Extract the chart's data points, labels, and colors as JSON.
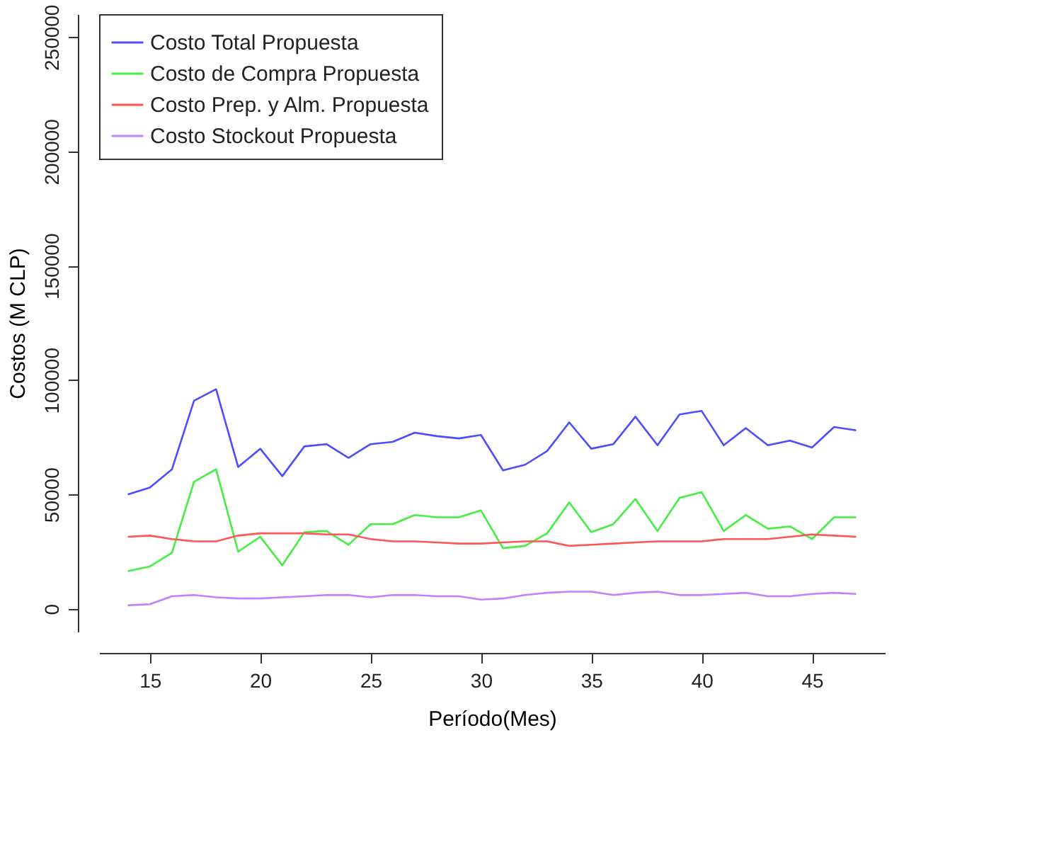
{
  "chart_data": {
    "type": "line",
    "xlabel": "Período(Mes)",
    "ylabel": "Costos (M CLP)",
    "x": [
      14,
      15,
      16,
      17,
      18,
      19,
      20,
      21,
      22,
      23,
      24,
      25,
      26,
      27,
      28,
      29,
      30,
      31,
      32,
      33,
      34,
      35,
      36,
      37,
      38,
      39,
      40,
      41,
      42,
      43,
      44,
      45,
      46,
      47
    ],
    "series": [
      {
        "name": "Costo Total Propuesta",
        "color": "#4d4dff",
        "values": [
          50000,
          53000,
          61000,
          91000,
          96000,
          62000,
          70000,
          58000,
          71000,
          72000,
          66000,
          72000,
          73000,
          77000,
          75500,
          74500,
          76000,
          60500,
          63000,
          69000,
          81500,
          70000,
          72000,
          84000,
          71500,
          85000,
          86500,
          71500,
          79000,
          71500,
          73500,
          70500,
          79500,
          78000
        ]
      },
      {
        "name": "Costo de Compra Propuesta",
        "color": "#44ee44",
        "values": [
          16500,
          18500,
          24500,
          55500,
          61000,
          25000,
          31500,
          19000,
          33500,
          34000,
          28000,
          37000,
          37000,
          41000,
          40000,
          40000,
          43000,
          26500,
          27500,
          33000,
          46500,
          33500,
          37000,
          48000,
          34000,
          48500,
          51000,
          34000,
          41000,
          35000,
          36000,
          30500,
          40000,
          40000
        ]
      },
      {
        "name": "Costo Prep. y Alm. Propuesta",
        "color": "#ff5555",
        "values": [
          31500,
          32000,
          30500,
          29500,
          29500,
          32000,
          33000,
          33000,
          33000,
          32500,
          32500,
          30500,
          29500,
          29500,
          29000,
          28500,
          28500,
          29000,
          29500,
          29500,
          27500,
          28000,
          28500,
          29000,
          29500,
          29500,
          29500,
          30500,
          30500,
          30500,
          31500,
          32500,
          32000,
          31500
        ]
      },
      {
        "name": "Costo Stockout Propuesta",
        "color": "#c080ff",
        "values": [
          1500,
          2000,
          5500,
          6000,
          5000,
          4500,
          4500,
          5000,
          5500,
          6000,
          6000,
          5000,
          6000,
          6000,
          5500,
          5500,
          4000,
          4500,
          6000,
          7000,
          7500,
          7500,
          6000,
          7000,
          7500,
          6000,
          6000,
          6500,
          7000,
          5500,
          5500,
          6500,
          7000,
          6500
        ]
      }
    ],
    "xlim": [
      12.7,
      48.3
    ],
    "ylim": [
      -10000,
      260000
    ],
    "xticks": [
      15,
      20,
      25,
      30,
      35,
      40,
      45
    ],
    "yticks": [
      0,
      50000,
      100000,
      150000,
      200000,
      250000
    ],
    "grid": false,
    "legend": "top left",
    "marker": "none",
    "line_style": "solid"
  }
}
